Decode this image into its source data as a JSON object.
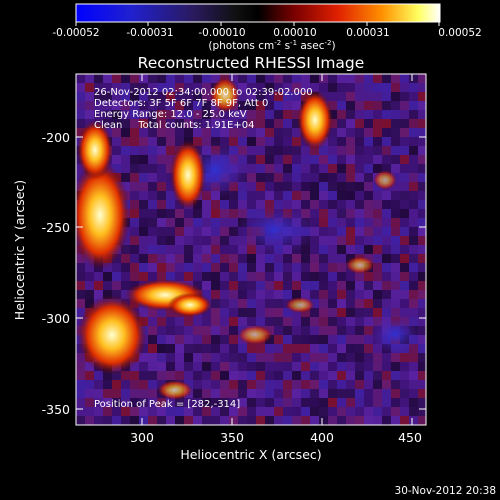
{
  "colorbar": {
    "ticks": [
      "-0.00052",
      "-0.00031",
      "-0.00010",
      "0.00010",
      "0.00031",
      "0.00052"
    ],
    "units_prefix": "(photons cm",
    "units_exp1": "-2",
    "units_mid": " s",
    "units_exp2": "-1",
    "units_mid2": " asec",
    "units_exp3": "-2",
    "units_suffix": ")"
  },
  "plot": {
    "title": "Reconstructed RHESSI Image",
    "xlabel": "Heliocentric X (arcsec)",
    "ylabel": "Heliocentric Y (arcsec)",
    "xticks": [
      "300",
      "350",
      "400",
      "450"
    ],
    "yticks": [
      "-200",
      "-250",
      "-300",
      "-350"
    ]
  },
  "annotations": {
    "line1": "26-Nov-2012 02:34:00.000 to 02:39:02.000",
    "line2": "Detectors: 3F 5F 6F 7F 8F 9F, Att 0",
    "line3": "Energy Range: 12.0 - 25.0 keV",
    "line4": "Clean     Total counts: 1.91E+04",
    "peak": "Position of Peak = [282,-314]"
  },
  "footer": {
    "date": "30-Nov-2012 20:38"
  },
  "colors": {
    "background": "#000000",
    "text": "#ffffff"
  }
}
